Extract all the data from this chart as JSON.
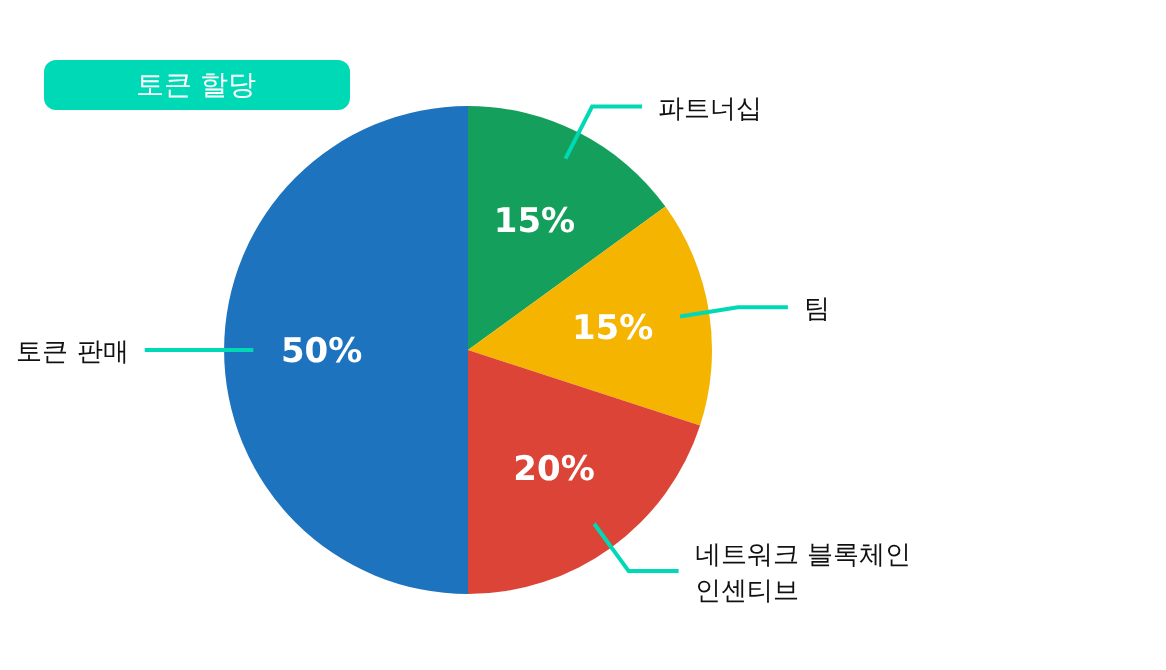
{
  "chart_data": {
    "type": "pie",
    "title": "토큰 할당",
    "categories": [
      "파트너십",
      "팀",
      "네트워크 블록체인\n인센티브",
      "토큰 판매"
    ],
    "values": [
      15,
      15,
      20,
      50
    ],
    "colors": [
      "#159f5c",
      "#f4b400",
      "#db4437",
      "#1e73be"
    ],
    "value_labels": [
      "15%",
      "15%",
      "20%",
      "50%"
    ]
  }
}
